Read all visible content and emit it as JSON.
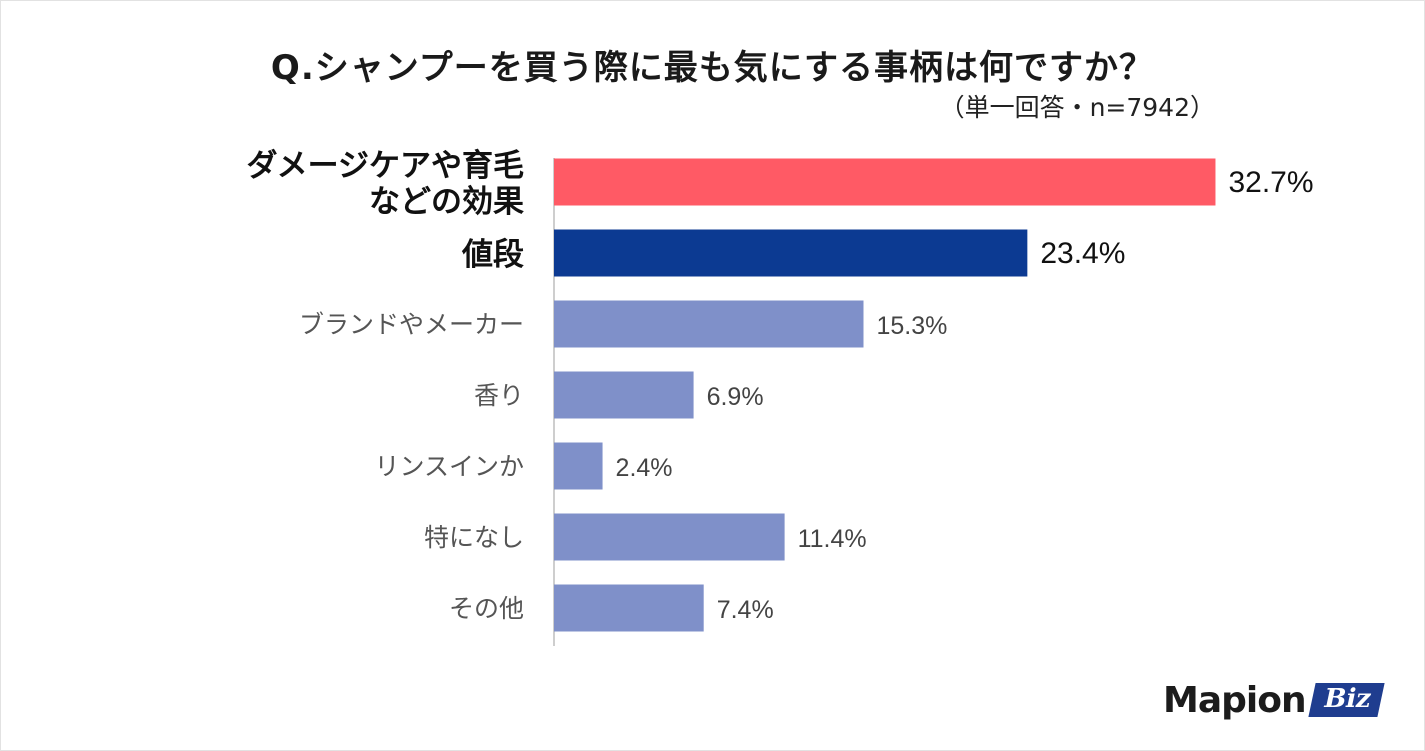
{
  "chart_data": {
    "type": "bar",
    "orientation": "horizontal",
    "title": "Q.シャンプーを買う際に最も気にする事柄は何ですか？",
    "subtitle": "（単一回答・n=7942）",
    "categories": [
      [
        "ダメージケアや育毛",
        "などの効果"
      ],
      [
        "値段"
      ],
      [
        "ブランドやメーカー"
      ],
      [
        "香り"
      ],
      [
        "リンスインか"
      ],
      [
        "特になし"
      ],
      [
        "その他"
      ]
    ],
    "values": [
      32.7,
      23.4,
      15.3,
      6.9,
      2.4,
      11.4,
      7.4
    ],
    "value_labels": [
      "32.7%",
      "23.4%",
      "15.3%",
      "6.9%",
      "2.4%",
      "11.4%",
      "7.4%"
    ],
    "emphasis": [
      true,
      true,
      false,
      false,
      false,
      false,
      false
    ],
    "colors": [
      "#ff5a65",
      "#0c3a92",
      "#7f90c9",
      "#7f90c9",
      "#7f90c9",
      "#7f90c9",
      "#7f90c9"
    ],
    "xlim": [
      0,
      35
    ],
    "grid": false,
    "legend": "none"
  },
  "brand": {
    "name": "Mapion",
    "badge": "Biz",
    "badge_color": "#1f3d8f"
  }
}
